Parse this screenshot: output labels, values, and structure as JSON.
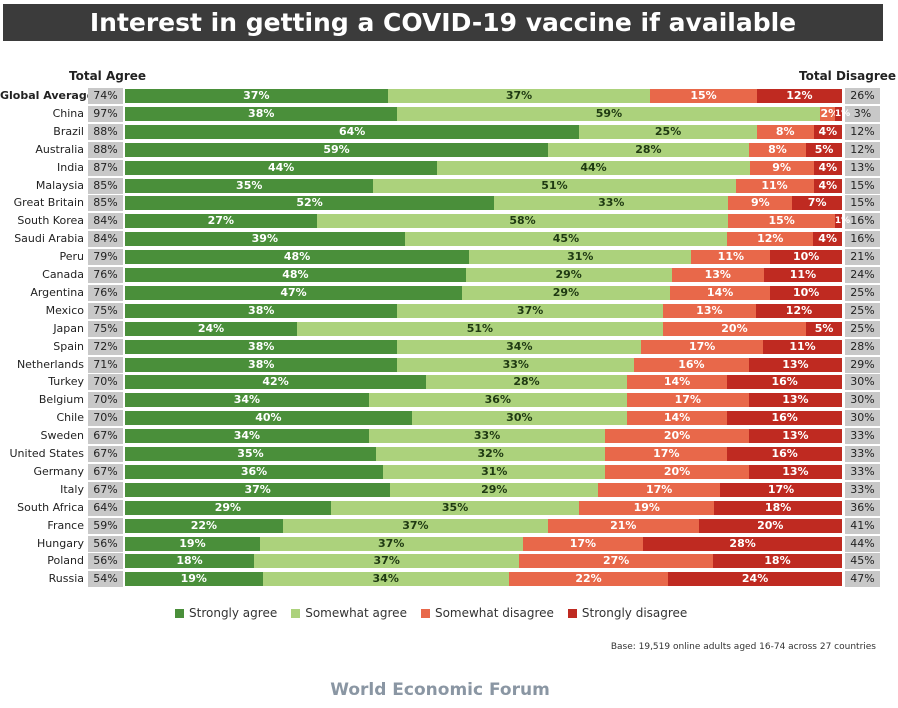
{
  "chart_data": {
    "type": "bar",
    "orientation": "horizontal-stacked-100",
    "title": "Interest in getting a COVID-19 vaccine if available",
    "left_header": "Total Agree",
    "right_header": "Total Disagree",
    "series_names": [
      "Strongly agree",
      "Somewhat agree",
      "Somewhat disagree",
      "Strongly disagree"
    ],
    "colors": [
      "#4a8f3a",
      "#acd27c",
      "#e8684a",
      "#bf2a21"
    ],
    "rows": [
      {
        "label": "Global Average",
        "total_agree": "74%",
        "values": [
          37,
          37,
          15,
          12
        ],
        "total_disagree": "26%"
      },
      {
        "label": "China",
        "total_agree": "97%",
        "values": [
          38,
          59,
          2,
          1
        ],
        "total_disagree": "3%"
      },
      {
        "label": "Brazil",
        "total_agree": "88%",
        "values": [
          64,
          25,
          8,
          4
        ],
        "total_disagree": "12%"
      },
      {
        "label": "Australia",
        "total_agree": "88%",
        "values": [
          59,
          28,
          8,
          5
        ],
        "total_disagree": "12%"
      },
      {
        "label": "India",
        "total_agree": "87%",
        "values": [
          44,
          44,
          9,
          4
        ],
        "total_disagree": "13%"
      },
      {
        "label": "Malaysia",
        "total_agree": "85%",
        "values": [
          35,
          51,
          11,
          4
        ],
        "total_disagree": "15%"
      },
      {
        "label": "Great Britain",
        "total_agree": "85%",
        "values": [
          52,
          33,
          9,
          7
        ],
        "total_disagree": "15%"
      },
      {
        "label": "South Korea",
        "total_agree": "84%",
        "values": [
          27,
          58,
          15,
          1
        ],
        "total_disagree": "16%"
      },
      {
        "label": "Saudi Arabia",
        "total_agree": "84%",
        "values": [
          39,
          45,
          12,
          4
        ],
        "total_disagree": "16%"
      },
      {
        "label": "Peru",
        "total_agree": "79%",
        "values": [
          48,
          31,
          11,
          10
        ],
        "total_disagree": "21%"
      },
      {
        "label": "Canada",
        "total_agree": "76%",
        "values": [
          48,
          29,
          13,
          11
        ],
        "total_disagree": "24%"
      },
      {
        "label": "Argentina",
        "total_agree": "76%",
        "values": [
          47,
          29,
          14,
          10
        ],
        "total_disagree": "25%"
      },
      {
        "label": "Mexico",
        "total_agree": "75%",
        "values": [
          38,
          37,
          13,
          12
        ],
        "total_disagree": "25%"
      },
      {
        "label": "Japan",
        "total_agree": "75%",
        "values": [
          24,
          51,
          20,
          5
        ],
        "total_disagree": "25%"
      },
      {
        "label": "Spain",
        "total_agree": "72%",
        "values": [
          38,
          34,
          17,
          11
        ],
        "total_disagree": "28%"
      },
      {
        "label": "Netherlands",
        "total_agree": "71%",
        "values": [
          38,
          33,
          16,
          13
        ],
        "total_disagree": "29%"
      },
      {
        "label": "Turkey",
        "total_agree": "70%",
        "values": [
          42,
          28,
          14,
          16
        ],
        "total_disagree": "30%"
      },
      {
        "label": "Belgium",
        "total_agree": "70%",
        "values": [
          34,
          36,
          17,
          13
        ],
        "total_disagree": "30%"
      },
      {
        "label": "Chile",
        "total_agree": "70%",
        "values": [
          40,
          30,
          14,
          16
        ],
        "total_disagree": "30%"
      },
      {
        "label": "Sweden",
        "total_agree": "67%",
        "values": [
          34,
          33,
          20,
          13
        ],
        "total_disagree": "33%"
      },
      {
        "label": "United States",
        "total_agree": "67%",
        "values": [
          35,
          32,
          17,
          16
        ],
        "total_disagree": "33%"
      },
      {
        "label": "Germany",
        "total_agree": "67%",
        "values": [
          36,
          31,
          20,
          13
        ],
        "total_disagree": "33%"
      },
      {
        "label": "Italy",
        "total_agree": "67%",
        "values": [
          37,
          29,
          17,
          17
        ],
        "total_disagree": "33%"
      },
      {
        "label": "South Africa",
        "total_agree": "64%",
        "values": [
          29,
          35,
          19,
          18
        ],
        "total_disagree": "36%"
      },
      {
        "label": "France",
        "total_agree": "59%",
        "values": [
          22,
          37,
          21,
          20
        ],
        "total_disagree": "41%"
      },
      {
        "label": "Hungary",
        "total_agree": "56%",
        "values": [
          19,
          37,
          17,
          28
        ],
        "total_disagree": "44%"
      },
      {
        "label": "Poland",
        "total_agree": "56%",
        "values": [
          18,
          37,
          27,
          18
        ],
        "total_disagree": "45%"
      },
      {
        "label": "Russia",
        "total_agree": "54%",
        "values": [
          19,
          34,
          22,
          24
        ],
        "total_disagree": "47%"
      }
    ],
    "base_note": "Base: 19,519 online adults aged 16-74 across 27 countries"
  },
  "footer": "World Economic Forum"
}
